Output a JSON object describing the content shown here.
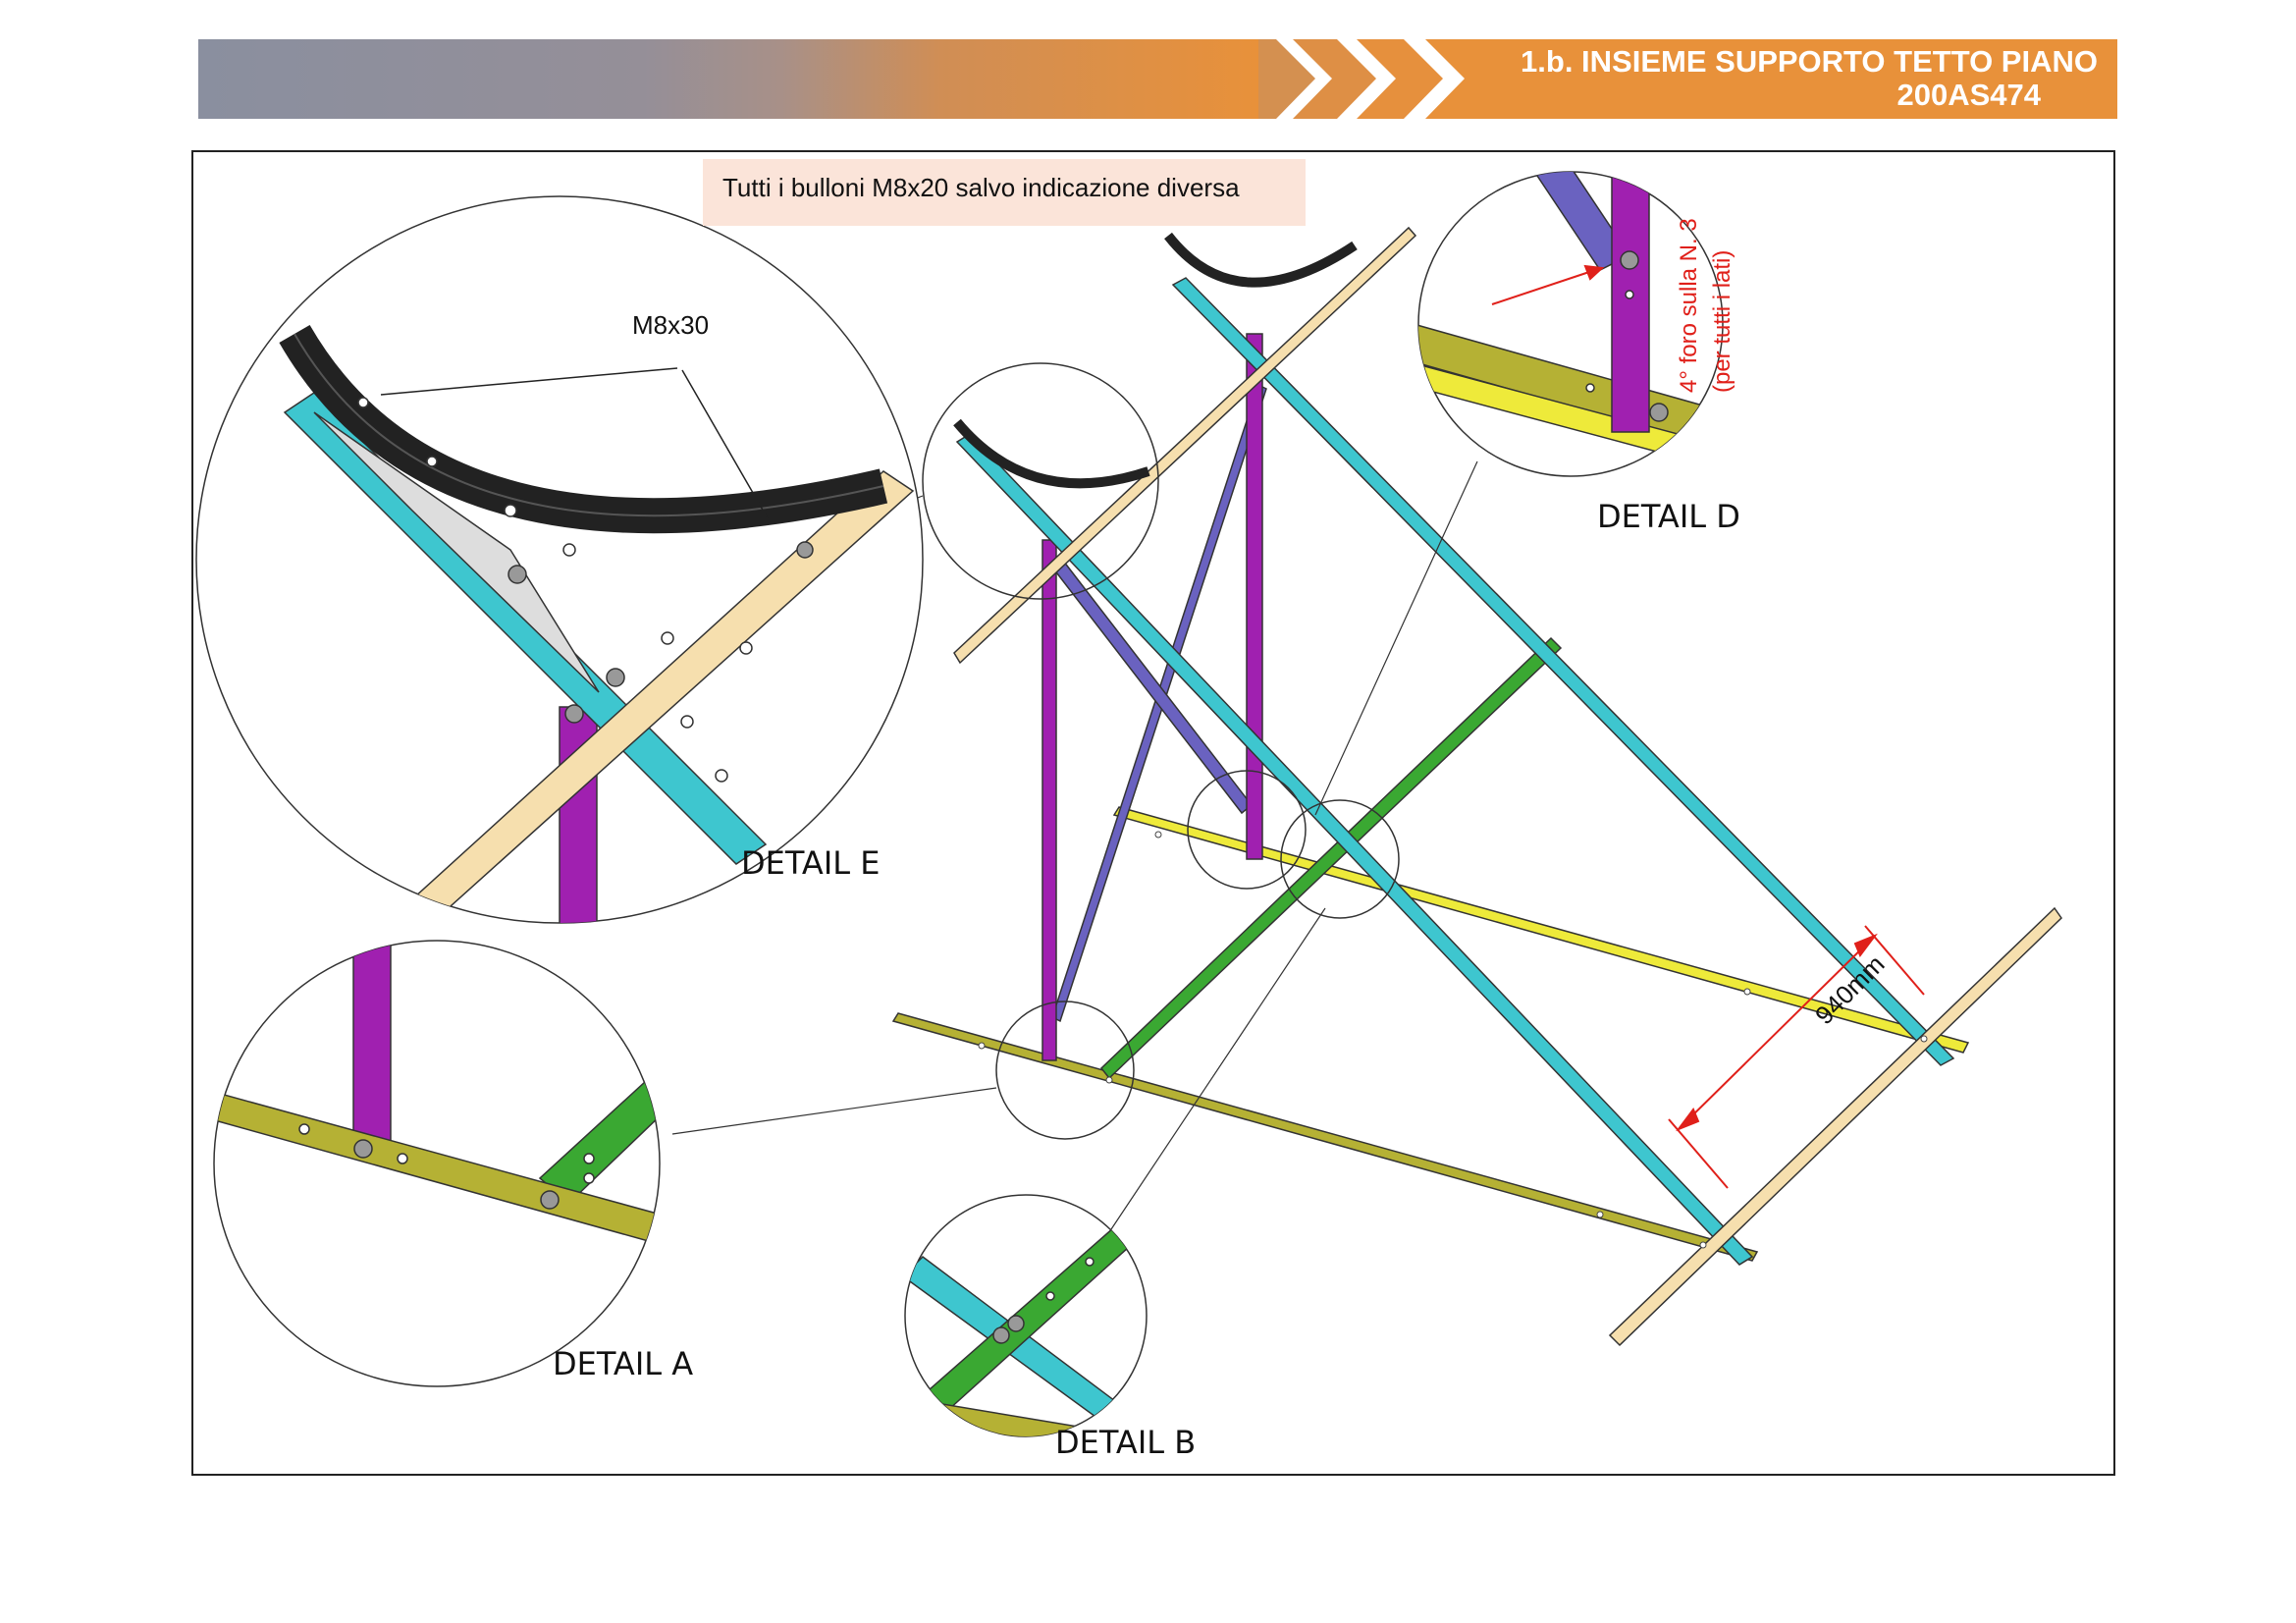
{
  "header": {
    "title_line1": "1.b. INSIEME SUPPORTO TETTO PIANO",
    "title_line2": "200AS474"
  },
  "note": "Tutti i bulloni M8x20 salvo indicazione diversa",
  "labels": {
    "bolt_callout": "M8x30",
    "detail_a": "DETAIL A",
    "detail_b": "DETAIL B",
    "detail_d": "DETAIL D",
    "detail_e": "DETAIL E",
    "hole_note_line1": "4° foro sulla N. 3",
    "hole_note_line2": "(per tutti i lati)",
    "dimension": "940mm"
  },
  "colors": {
    "header_grey": "#8a8f9f",
    "header_orange": "#e8913a",
    "rail_olive": "#b5b134",
    "rail_yellow": "#eeea3a",
    "beam_cyan": "#3ec6cf",
    "post_purple": "#a020b0",
    "brace_violet": "#6a62c0",
    "brace_green": "#3aa832",
    "beam_tan": "#f6dfae",
    "dimension_red": "#e0201a"
  }
}
